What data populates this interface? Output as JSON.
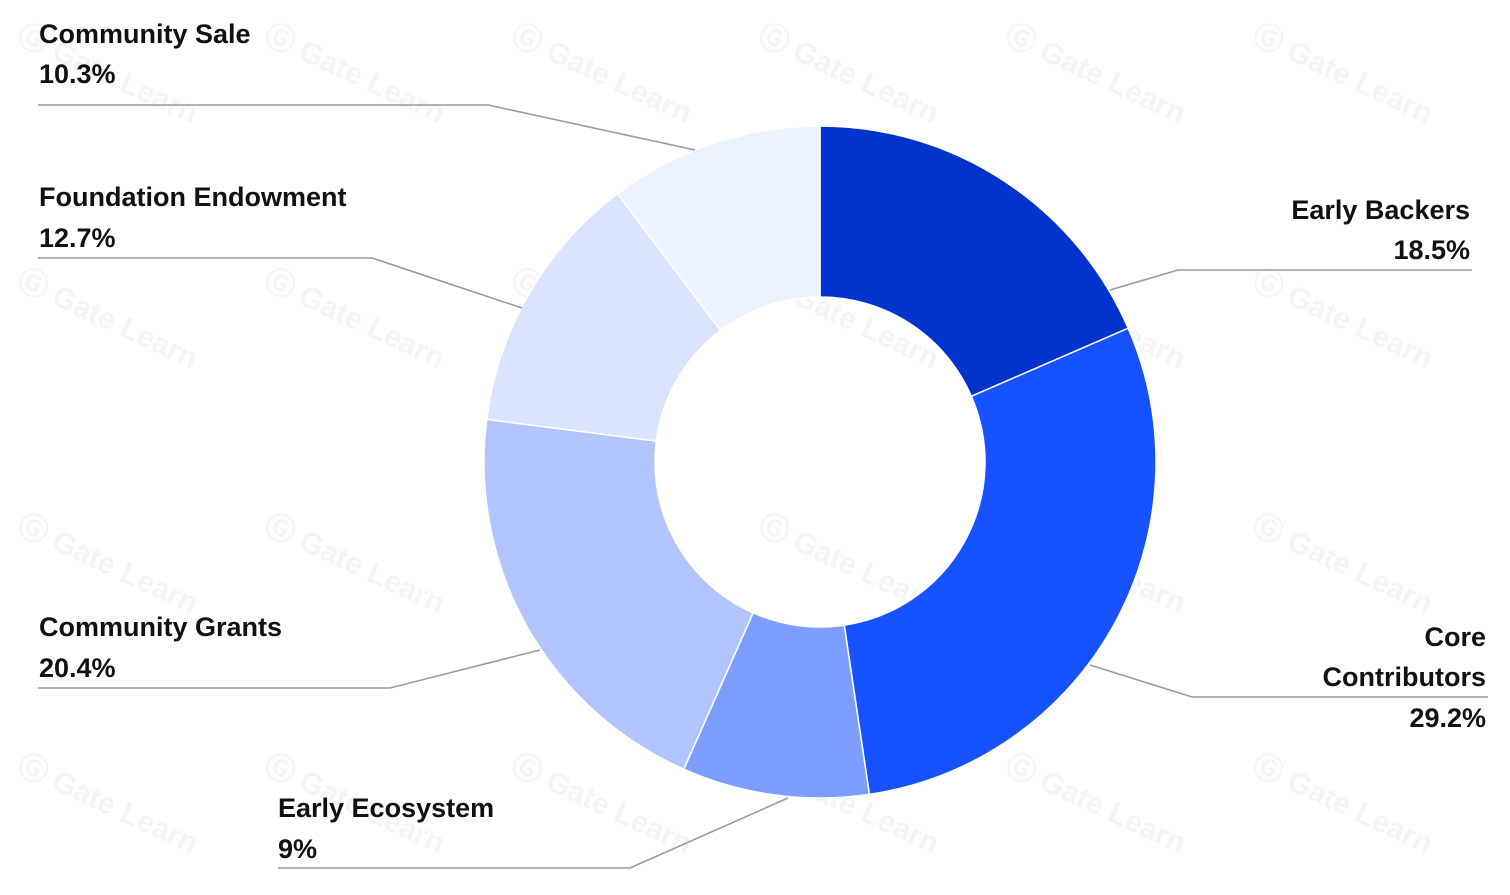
{
  "chart_data": {
    "type": "pie",
    "subtype": "donut",
    "title": "",
    "slices": [
      {
        "label_lines": [
          "Early Backers"
        ],
        "percent_text": "18.5%",
        "value": 18.5,
        "color": "#0033cc"
      },
      {
        "label_lines": [
          "Core",
          "Contributors"
        ],
        "percent_text": "29.2%",
        "value": 29.2,
        "color": "#1652ff"
      },
      {
        "label_lines": [
          "Early Ecosystem"
        ],
        "percent_text": "9%",
        "value": 9,
        "color": "#7e9eff"
      },
      {
        "label_lines": [
          "Community Grants"
        ],
        "percent_text": "20.4%",
        "value": 20.4,
        "color": "#b2c5ff"
      },
      {
        "label_lines": [
          "Foundation Endowment"
        ],
        "percent_text": "12.7%",
        "value": 12.7,
        "color": "#dae3ff"
      },
      {
        "label_lines": [
          "Community Sale"
        ],
        "percent_text": "10.3%",
        "value": 10.3,
        "color": "#edf2ff"
      }
    ],
    "start": "12 o'clock",
    "direction": "clockwise",
    "legend": "none (labels placed outside with leader lines)"
  },
  "watermark": {
    "text": "Gate Learn"
  },
  "colors": {
    "background": "#ffffff",
    "leader_line": "#9a9a9a",
    "label_text": "#111111"
  }
}
